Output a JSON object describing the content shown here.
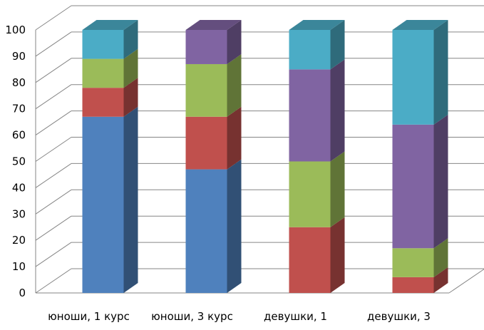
{
  "chart_data": {
    "type": "bar",
    "stacked": true,
    "style": "3d",
    "categories": [
      "юноши, 1 курс",
      "юноши, 3 курс",
      "девушки, 1",
      "девушки, 3"
    ],
    "series": [
      {
        "values": [
          67,
          47,
          0,
          0
        ],
        "color": "#4F81BD"
      },
      {
        "values": [
          11,
          20,
          25,
          6
        ],
        "color": "#C0504D"
      },
      {
        "values": [
          11,
          20,
          25,
          11
        ],
        "color": "#9BBB59"
      },
      {
        "values": [
          0,
          13,
          35,
          47
        ],
        "color": "#8064A2"
      },
      {
        "values": [
          11,
          0,
          15,
          36
        ],
        "color": "#4BACC6"
      }
    ],
    "ylim": [
      0,
      100
    ],
    "yticks": [
      0,
      10,
      20,
      30,
      40,
      50,
      60,
      70,
      80,
      90,
      100
    ],
    "grid": true,
    "legend": "none"
  }
}
